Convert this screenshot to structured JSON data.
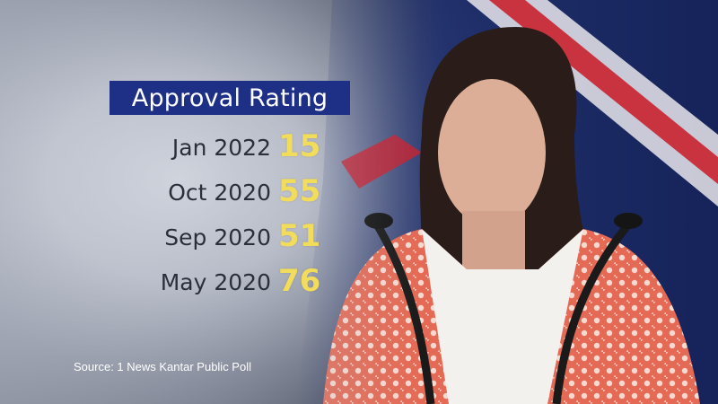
{
  "colors": {
    "title_bg": "#1e2f86",
    "value_text": "#f2dc5c",
    "date_text": "#2b2f3a"
  },
  "chart_data": {
    "type": "table",
    "title": "Approval Rating",
    "categories": [
      "Jan 2022",
      "Oct 2020",
      "Sep 2020",
      "May 2020"
    ],
    "values": [
      15,
      55,
      51,
      76
    ],
    "rows": [
      {
        "label": "Jan 2022",
        "value": "15"
      },
      {
        "label": "Oct 2020",
        "value": "55"
      },
      {
        "label": "Sep 2020",
        "value": "51"
      },
      {
        "label": "May 2020",
        "value": "76"
      }
    ],
    "source": "Source: 1 News Kantar Public Poll"
  }
}
